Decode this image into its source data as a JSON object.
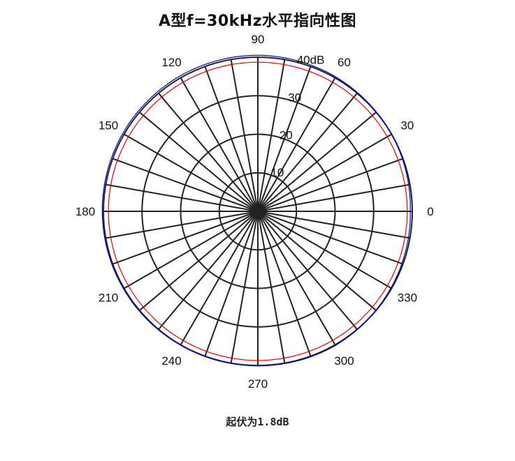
{
  "page": {
    "title": "A型f=30kHz水平指向性图",
    "note": "起伏为1.8dB"
  },
  "chart_data": {
    "type": "polar",
    "title": "A型f=30kHz水平指向性图",
    "angle_unit": "deg",
    "angle_step": 10,
    "angle_labels": [
      {
        "angle": 0,
        "text": "0"
      },
      {
        "angle": 30,
        "text": "30"
      },
      {
        "angle": 60,
        "text": "60"
      },
      {
        "angle": 90,
        "text": "90"
      },
      {
        "angle": 120,
        "text": "120"
      },
      {
        "angle": 150,
        "text": "150"
      },
      {
        "angle": 180,
        "text": "180"
      },
      {
        "angle": 210,
        "text": "210"
      },
      {
        "angle": 240,
        "text": "240"
      },
      {
        "angle": 270,
        "text": "270"
      },
      {
        "angle": 300,
        "text": "300"
      },
      {
        "angle": 330,
        "text": "330"
      }
    ],
    "radial_unit": "dB",
    "rlim": [
      0,
      40
    ],
    "radial_ticks": [
      {
        "value": 10,
        "text": "10"
      },
      {
        "value": 20,
        "text": "20"
      },
      {
        "value": 30,
        "text": "30"
      },
      {
        "value": 40,
        "text": "40dB"
      }
    ],
    "grid": true,
    "series": [
      {
        "color": "#0000cc",
        "angles": [
          0,
          30,
          60,
          90,
          120,
          150,
          180,
          210,
          240,
          270,
          300,
          330,
          360
        ],
        "values": [
          39.5,
          40.0,
          40.3,
          40.5,
          40.5,
          40.4,
          40.3,
          40.2,
          40.1,
          40.1,
          40.2,
          39.8,
          39.5
        ]
      },
      {
        "color": "#ee0000",
        "angles": [
          0,
          360
        ],
        "values": [
          38.7,
          38.7
        ]
      }
    ]
  }
}
